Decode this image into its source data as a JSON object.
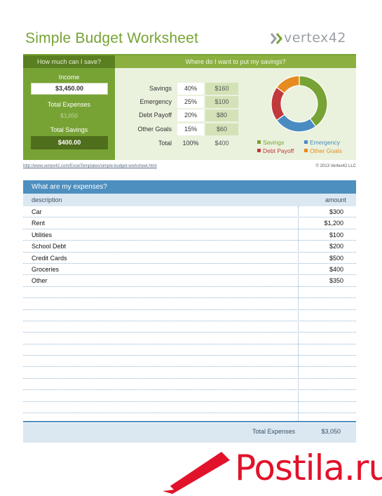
{
  "header": {
    "title": "Simple Budget Worksheet",
    "logo": "vertex42"
  },
  "savings": {
    "heading": "How much can I save?",
    "income_label": "Income",
    "income_value": "$3,450.00",
    "expenses_label": "Total Expenses",
    "expenses_value": "$3,050",
    "total_savings_label": "Total Savings",
    "total_savings_value": "$400.00"
  },
  "allocation": {
    "heading": "Where do I want to put my savings?",
    "rows": [
      {
        "label": "Savings",
        "pct": "40%",
        "amount": "$160"
      },
      {
        "label": "Emergency",
        "pct": "25%",
        "amount": "$100"
      },
      {
        "label": "Debt Payoff",
        "pct": "20%",
        "amount": "$80"
      },
      {
        "label": "Other Goals",
        "pct": "15%",
        "amount": "$60"
      }
    ],
    "total": {
      "label": "Total",
      "pct": "100%",
      "amount": "$400"
    }
  },
  "chart_data": {
    "type": "pie",
    "variant": "donut",
    "categories": [
      "Savings",
      "Emergency",
      "Debt Payoff",
      "Other Goals"
    ],
    "values": [
      40,
      25,
      20,
      15
    ],
    "colors": [
      "#77a334",
      "#4a8cc2",
      "#c0393b",
      "#e58b1f"
    ],
    "legend": "bottom"
  },
  "footer_links": {
    "url": "http://www.vertex42.com/ExcelTemplates/simple-budget-worksheet.html",
    "copyright": "© 2013 Vertex42 LLC"
  },
  "expenses": {
    "heading": "What are my expenses?",
    "col_description": "description",
    "col_amount": "amount",
    "rows": [
      {
        "description": "Car",
        "amount": "$300"
      },
      {
        "description": "Rent",
        "amount": "$1,200"
      },
      {
        "description": "Utilities",
        "amount": "$100"
      },
      {
        "description": "School Debt",
        "amount": "$200"
      },
      {
        "description": "Credit Cards",
        "amount": "$500"
      },
      {
        "description": "Groceries",
        "amount": "$400"
      },
      {
        "description": "Other",
        "amount": "$350"
      },
      {
        "description": "",
        "amount": ""
      },
      {
        "description": "",
        "amount": ""
      },
      {
        "description": "",
        "amount": ""
      },
      {
        "description": "",
        "amount": ""
      },
      {
        "description": "",
        "amount": ""
      },
      {
        "description": "",
        "amount": ""
      },
      {
        "description": "",
        "amount": ""
      },
      {
        "description": "",
        "amount": ""
      },
      {
        "description": "",
        "amount": ""
      },
      {
        "description": "",
        "amount": ""
      },
      {
        "description": "",
        "amount": ""
      }
    ],
    "total_label": "Total Expenses",
    "total_value": "$3,050"
  },
  "watermark": "Postila.ru",
  "colors": {
    "green": "#77a334",
    "dark_green": "#5a7f21",
    "blue": "#4d8fbf",
    "light_blue": "#dbe8f2",
    "watermark_red": "#e2122a"
  }
}
